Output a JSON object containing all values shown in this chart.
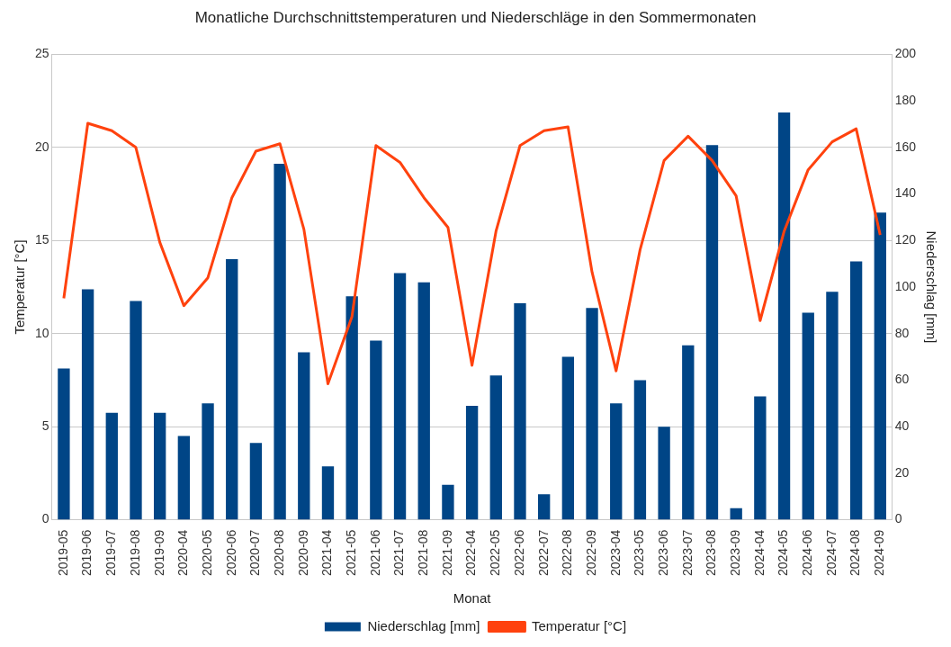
{
  "chart_data": {
    "type": "bar",
    "title": "Monatliche Durchschnittstemperaturen und Niederschläge in den Sommermonaten",
    "xlabel": "Monat",
    "ylabel": "Temperatur [°C]",
    "y2label": "Niederschlag [mm]",
    "categories": [
      "2019-05",
      "2019-06",
      "2019-07",
      "2019-08",
      "2019-09",
      "2020-04",
      "2020-05",
      "2020-06",
      "2020-07",
      "2020-08",
      "2020-09",
      "2021-04",
      "2021-05",
      "2021-06",
      "2021-07",
      "2021-08",
      "2021-09",
      "2022-04",
      "2022-05",
      "2022-06",
      "2022-07",
      "2022-08",
      "2022-09",
      "2023-04",
      "2023-05",
      "2023-06",
      "2023-07",
      "2023-08",
      "2023-09",
      "2024-04",
      "2024-05",
      "2024-06",
      "2024-07",
      "2024-08",
      "2024-09"
    ],
    "series": [
      {
        "name": "Niederschlag [mm]",
        "axis": "y2",
        "color": "#004586",
        "values": [
          65,
          99,
          46,
          94,
          46,
          36,
          50,
          112,
          33,
          153,
          72,
          23,
          96,
          77,
          106,
          102,
          15,
          49,
          62,
          93,
          11,
          70,
          91,
          50,
          60,
          40,
          75,
          161,
          5,
          53,
          175,
          89,
          98,
          111,
          132
        ]
      },
      {
        "name": "Temperatur [°C]",
        "type": "line",
        "axis": "y",
        "color": "#ff420e",
        "values": [
          11.9,
          21.3,
          20.9,
          20.0,
          14.9,
          11.5,
          13.0,
          17.3,
          19.8,
          20.2,
          15.6,
          7.3,
          10.9,
          20.1,
          19.2,
          17.3,
          15.7,
          8.3,
          15.5,
          20.1,
          20.9,
          21.1,
          13.3,
          8.0,
          14.5,
          19.3,
          20.6,
          19.3,
          17.4,
          10.7,
          15.5,
          18.8,
          20.3,
          21.0,
          15.3
        ]
      }
    ],
    "ylim": [
      0,
      25
    ],
    "yticks": [
      0,
      5,
      10,
      15,
      20,
      25
    ],
    "y2lim": [
      0,
      200
    ],
    "y2ticks": [
      0,
      20,
      40,
      60,
      80,
      100,
      120,
      140,
      160,
      180,
      200
    ],
    "grid": "y",
    "legend": "bottom",
    "marker": "none",
    "line_style": "solid"
  }
}
